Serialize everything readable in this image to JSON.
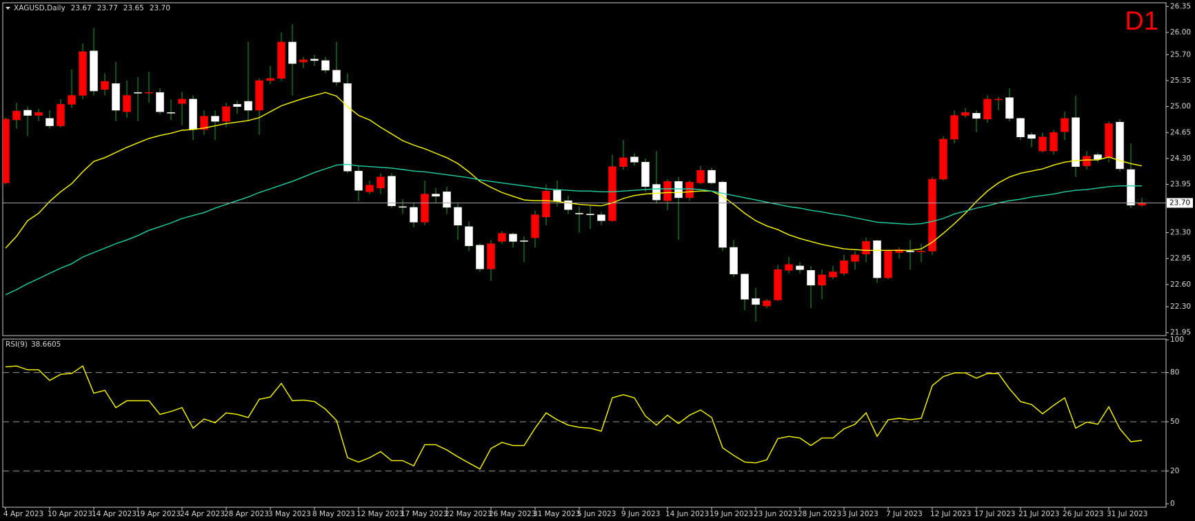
{
  "chart_data": [
    {
      "type": "candlestick",
      "title": "XAGUSD,Daily",
      "timeframe_label": "D1",
      "price_label": "23.70",
      "categories": [
        "4 Apr 2023",
        null,
        null,
        null,
        "10 Apr 2023",
        null,
        null,
        null,
        "14 Apr 2023",
        null,
        null,
        null,
        "19 Apr 2023",
        null,
        null,
        null,
        "24 Apr 2023",
        null,
        null,
        null,
        "28 Apr 2023",
        null,
        null,
        null,
        "3 May 2023",
        null,
        null,
        null,
        "8 May 2023",
        null,
        null,
        null,
        "12 May 2023",
        null,
        null,
        null,
        "17 May 2023",
        null,
        null,
        null,
        "22 May 2023",
        null,
        null,
        null,
        "26 May 2023",
        null,
        null,
        null,
        "31 May 2023",
        null,
        null,
        null,
        "5 Jun 2023",
        null,
        null,
        null,
        "9 Jun 2023",
        null,
        null,
        null,
        "14 Jun 2023",
        null,
        null,
        null,
        "19 Jun 2023",
        null,
        null,
        null,
        "23 Jun 2023",
        null,
        null,
        null,
        "28 Jun 2023",
        null,
        null,
        null,
        "3 Jul 2023",
        null,
        null,
        null,
        "7 Jul 2023",
        null,
        null,
        null,
        "12 Jul 2023",
        null,
        null,
        null,
        "17 Jul 2023",
        null,
        null,
        null,
        "21 Jul 2023",
        null,
        null,
        null,
        "26 Jul 2023",
        null,
        null,
        null,
        "31 Jul 2023",
        null,
        null,
        null
      ],
      "open": [
        23.97,
        24.82,
        24.95,
        24.88,
        24.84,
        24.74,
        25.03,
        25.15,
        25.75,
        25.23,
        25.31,
        24.93,
        25.19,
        25.18,
        25.19,
        24.92,
        25.04,
        25.1,
        24.69,
        24.87,
        24.8,
        25.03,
        25.07,
        24.95,
        25.35,
        25.38,
        25.87,
        25.6,
        25.64,
        25.62,
        25.49,
        25.31,
        24.13,
        23.85,
        23.9,
        24.06,
        23.65,
        23.64,
        23.44,
        23.82,
        23.85,
        23.64,
        23.38,
        23.13,
        22.81,
        23.18,
        23.28,
        23.19,
        23.23,
        23.51,
        23.87,
        23.73,
        23.56,
        23.55,
        23.54,
        23.46,
        24.19,
        24.32,
        24.25,
        23.95,
        23.73,
        23.99,
        23.77,
        23.97,
        24.14,
        23.98,
        23.1,
        22.74,
        22.41,
        22.31,
        22.39,
        22.79,
        22.85,
        22.79,
        22.59,
        22.7,
        22.75,
        22.91,
        23.01,
        23.19,
        22.69,
        23.03,
        23.05,
        23.04,
        23.05,
        24.02,
        24.56,
        24.88,
        24.91,
        24.83,
        25.09,
        25.12,
        24.84,
        24.62,
        24.4,
        24.4,
        24.66,
        24.85,
        24.2,
        24.35,
        24.31,
        24.79,
        24.15,
        23.67
      ],
      "high": [
        24.85,
        25.05,
        25.0,
        24.97,
        24.95,
        25.1,
        25.5,
        25.85,
        26.06,
        25.45,
        25.6,
        25.35,
        25.4,
        25.47,
        25.25,
        25.1,
        25.2,
        25.15,
        24.95,
        24.95,
        25.05,
        25.08,
        25.87,
        25.38,
        25.55,
        26.0,
        26.11,
        25.67,
        25.7,
        25.67,
        25.87,
        25.45,
        24.2,
        24.0,
        24.1,
        24.1,
        23.75,
        23.7,
        24.0,
        23.9,
        23.92,
        23.7,
        23.45,
        23.15,
        23.2,
        23.32,
        23.3,
        23.25,
        23.6,
        23.95,
        24.0,
        23.8,
        23.65,
        23.68,
        23.58,
        24.35,
        24.55,
        24.37,
        24.3,
        24.4,
        24.02,
        24.05,
        24.0,
        24.2,
        24.18,
        24.0,
        23.2,
        22.75,
        22.55,
        22.4,
        22.87,
        22.97,
        22.9,
        22.85,
        22.8,
        22.85,
        23.0,
        23.05,
        23.23,
        23.2,
        23.07,
        23.1,
        23.2,
        23.15,
        24.05,
        24.6,
        24.95,
        24.98,
        24.95,
        25.15,
        25.13,
        25.25,
        24.85,
        24.65,
        24.65,
        24.68,
        24.93,
        25.15,
        24.4,
        24.38,
        24.8,
        24.83,
        24.5,
        23.77
      ],
      "low": [
        23.95,
        24.7,
        24.6,
        24.8,
        24.7,
        24.72,
        24.98,
        25.1,
        25.15,
        25.15,
        24.8,
        24.85,
        24.8,
        25.05,
        24.9,
        24.82,
        24.75,
        24.55,
        24.62,
        24.55,
        24.72,
        24.9,
        24.8,
        24.62,
        25.3,
        25.35,
        25.15,
        25.52,
        25.55,
        25.45,
        25.28,
        24.1,
        23.72,
        23.82,
        23.82,
        23.63,
        23.55,
        23.37,
        23.4,
        23.7,
        23.55,
        23.2,
        23.05,
        22.77,
        22.65,
        23.15,
        23.1,
        22.9,
        23.1,
        23.4,
        23.65,
        23.55,
        23.3,
        23.35,
        23.4,
        23.45,
        24.15,
        24.2,
        23.85,
        23.7,
        23.6,
        23.2,
        23.73,
        23.95,
        23.95,
        23.05,
        22.7,
        22.25,
        22.1,
        22.28,
        22.38,
        22.75,
        22.75,
        22.28,
        22.4,
        22.67,
        22.72,
        22.8,
        22.9,
        22.62,
        22.67,
        22.95,
        22.8,
        22.9,
        23.0,
        24.0,
        24.5,
        24.85,
        24.65,
        24.78,
        24.95,
        24.8,
        24.55,
        24.45,
        24.38,
        24.35,
        24.55,
        24.05,
        24.15,
        24.25,
        24.25,
        24.12,
        23.63,
        23.65
      ],
      "close": [
        24.83,
        24.94,
        24.88,
        24.92,
        24.74,
        25.03,
        25.15,
        25.74,
        25.21,
        25.34,
        24.95,
        25.15,
        25.18,
        25.19,
        24.93,
        24.91,
        25.1,
        24.69,
        24.87,
        24.8,
        25.0,
        25.0,
        24.95,
        25.35,
        25.38,
        25.87,
        25.58,
        25.63,
        25.62,
        25.49,
        25.33,
        24.13,
        23.87,
        23.94,
        24.05,
        23.66,
        23.64,
        23.44,
        23.82,
        23.79,
        23.64,
        23.4,
        23.12,
        22.81,
        23.15,
        23.29,
        23.18,
        23.18,
        23.54,
        23.86,
        23.72,
        23.61,
        23.55,
        23.54,
        23.46,
        24.19,
        24.31,
        24.25,
        23.92,
        23.74,
        23.99,
        23.77,
        23.98,
        24.14,
        23.97,
        23.1,
        22.74,
        22.4,
        22.33,
        22.38,
        22.8,
        22.87,
        22.8,
        22.59,
        22.73,
        22.77,
        22.92,
        23.0,
        23.18,
        22.69,
        23.05,
        23.07,
        23.04,
        23.05,
        24.02,
        24.56,
        24.88,
        24.92,
        24.84,
        25.1,
        25.1,
        24.84,
        24.59,
        24.57,
        24.59,
        24.65,
        24.84,
        24.19,
        24.33,
        24.29,
        24.77,
        24.16,
        23.67,
        23.7
      ],
      "up_color": "#ff0000",
      "down_color": "#ffffff",
      "wick_color": "#26a626",
      "series": [
        {
          "color": "#ffff00",
          "values": [
            23.09,
            23.25,
            23.46,
            23.56,
            23.72,
            23.85,
            23.96,
            24.12,
            24.26,
            24.31,
            24.38,
            24.45,
            24.51,
            24.57,
            24.61,
            24.64,
            24.68,
            24.69,
            24.71,
            24.74,
            24.77,
            24.79,
            24.81,
            24.85,
            24.93,
            25.01,
            25.06,
            25.11,
            25.15,
            25.19,
            25.14,
            25.0,
            24.88,
            24.82,
            24.72,
            24.63,
            24.54,
            24.48,
            24.43,
            24.37,
            24.31,
            24.23,
            24.12,
            23.99,
            23.91,
            23.84,
            23.79,
            23.74,
            23.73,
            23.73,
            23.72,
            23.7,
            23.68,
            23.67,
            23.66,
            23.7,
            23.76,
            23.8,
            23.82,
            23.83,
            23.84,
            23.84,
            23.85,
            23.86,
            23.86,
            23.79,
            23.68,
            23.56,
            23.46,
            23.39,
            23.34,
            23.27,
            23.22,
            23.18,
            23.14,
            23.11,
            23.08,
            23.07,
            23.06,
            23.06,
            23.06,
            23.06,
            23.06,
            23.08,
            23.17,
            23.29,
            23.42,
            23.56,
            23.72,
            23.86,
            23.97,
            24.05,
            24.1,
            24.13,
            24.16,
            24.21,
            24.25,
            24.27,
            24.28,
            24.28,
            24.32,
            24.27,
            24.23,
            24.2
          ]
        },
        {
          "color": "#1fd3a8",
          "values": [
            22.46,
            22.53,
            22.61,
            22.68,
            22.75,
            22.82,
            22.88,
            22.97,
            23.03,
            23.09,
            23.15,
            23.2,
            23.26,
            23.33,
            23.38,
            23.43,
            23.49,
            23.53,
            23.57,
            23.63,
            23.68,
            23.73,
            23.78,
            23.84,
            23.89,
            23.94,
            23.99,
            24.05,
            24.11,
            24.16,
            24.21,
            24.22,
            24.2,
            24.19,
            24.18,
            24.17,
            24.15,
            24.13,
            24.12,
            24.1,
            24.08,
            24.06,
            24.04,
            24.01,
            23.99,
            23.97,
            23.95,
            23.93,
            23.91,
            23.89,
            23.88,
            23.87,
            23.86,
            23.86,
            23.85,
            23.85,
            23.86,
            23.87,
            23.88,
            23.89,
            23.89,
            23.89,
            23.89,
            23.88,
            23.86,
            23.83,
            23.8,
            23.77,
            23.74,
            23.71,
            23.68,
            23.65,
            23.63,
            23.6,
            23.58,
            23.55,
            23.53,
            23.5,
            23.47,
            23.44,
            23.43,
            23.42,
            23.41,
            23.42,
            23.45,
            23.49,
            23.55,
            23.59,
            23.63,
            23.66,
            23.7,
            23.73,
            23.75,
            23.78,
            23.8,
            23.82,
            23.85,
            23.87,
            23.88,
            23.9,
            23.92,
            23.93,
            23.93,
            23.93
          ]
        }
      ],
      "price_line_color": "#a8a8a8",
      "ylim": [
        21.91,
        26.4
      ],
      "yticks": [
        26.35,
        {
          "value": 26,
          "label": "26.00"
        },
        {
          "value": 25.7,
          "label": "25.70"
        },
        25.35,
        {
          "value": 25,
          "label": "25.00"
        },
        24.65,
        {
          "value": 24.3,
          "label": "24.30"
        },
        23.95,
        {
          "value": 23.3,
          "label": "23.30"
        },
        22.95,
        {
          "value": 22.6,
          "label": "22.60"
        },
        {
          "value": 22.3,
          "label": "22.30"
        },
        21.95
      ]
    },
    {
      "type": "line",
      "title": "RSI(9)",
      "color": "#ffff00",
      "values": [
        83.5,
        84.0,
        81.7,
        81.7,
        75.2,
        78.9,
        79.4,
        84.0,
        67.4,
        69.2,
        58.6,
        62.8,
        62.8,
        62.8,
        54.5,
        56.3,
        58.6,
        46.1,
        51.7,
        49.4,
        55.4,
        54.5,
        52.6,
        63.7,
        65.1,
        73.4,
        62.8,
        63.2,
        62.3,
        57.7,
        50.8,
        28.1,
        25.4,
        28.1,
        31.8,
        26.3,
        26.3,
        23.1,
        36.0,
        36.0,
        32.8,
        28.6,
        24.9,
        21.2,
        33.7,
        37.4,
        35.5,
        35.5,
        46.1,
        55.4,
        51.2,
        48.0,
        46.6,
        46.1,
        44.3,
        64.6,
        66.5,
        64.6,
        53.5,
        48.0,
        54.0,
        48.9,
        54.0,
        57.2,
        52.6,
        34.1,
        29.5,
        25.4,
        24.9,
        26.8,
        39.7,
        41.1,
        40.1,
        35.5,
        40.1,
        40.1,
        45.7,
        48.5,
        55.4,
        41.1,
        51.2,
        52.1,
        51.2,
        52.1,
        72.0,
        77.5,
        79.8,
        79.8,
        76.6,
        79.4,
        79.4,
        70.1,
        62.3,
        60.5,
        54.9,
        60.0,
        64.6,
        46.1,
        49.8,
        48.5,
        59.1,
        45.7,
        37.8,
        38.6605
      ],
      "levels": [
        20,
        50,
        80
      ],
      "level_color": "#9a9a9a",
      "ylim": [
        0,
        100
      ],
      "yticks": [
        0,
        20,
        50,
        80,
        100
      ]
    }
  ]
}
